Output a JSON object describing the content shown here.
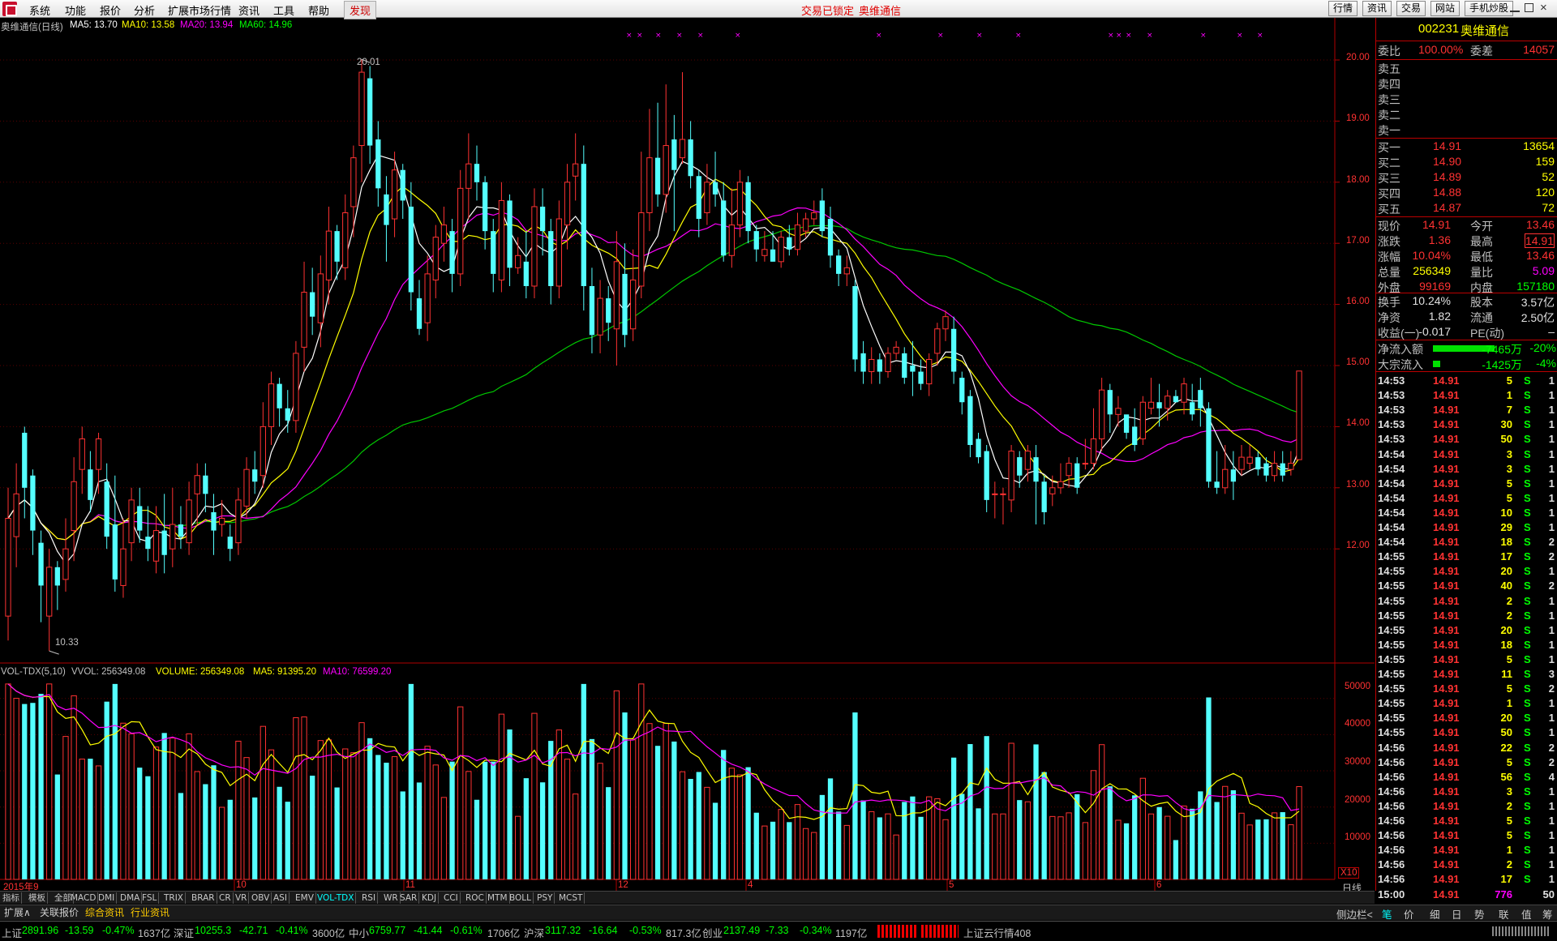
{
  "menu": {
    "items": [
      "系统",
      "功能",
      "报价",
      "分析",
      "扩展市场行情",
      "资讯",
      "工具",
      "帮助"
    ],
    "discover": "发现",
    "alert1": "交易已锁定",
    "alert2": "奥维通信",
    "right_buttons": [
      "行情",
      "资讯",
      "交易",
      "网站",
      "手机炒股"
    ]
  },
  "main_chart": {
    "header": {
      "name": "奥维通信(日线)",
      "ma5": "MA5: 13.70",
      "ma10": "MA10: 13.58",
      "ma20": "MA20: 13.94",
      "ma60": "MA60: 14.96"
    },
    "high_label": "20.01",
    "low_label": "10.33",
    "yaxis": [
      "20.00",
      "19.00",
      "18.00",
      "17.00",
      "16.00",
      "15.00",
      "14.00",
      "13.00",
      "12.00"
    ],
    "colors": {
      "up": "#ff3232",
      "down": "#54ffff",
      "ma5": "#ffffff",
      "ma10": "#ffff00",
      "ma20": "#ff00ff",
      "ma60": "#00c800"
    }
  },
  "volume_chart": {
    "header": {
      "name": "VOL-TDX(5,10)",
      "vvol": "VVOL: 256349.08",
      "volume": "VOLUME: 256349.08",
      "ma5": "MA5: 91395.20",
      "ma10": "MA10: 76599.20"
    },
    "yaxis": [
      "50000",
      "40000",
      "30000",
      "20000",
      "10000"
    ],
    "unit": "X10"
  },
  "xaxis": [
    "2015年9",
    "10",
    "11",
    "12",
    "4",
    "5",
    "6"
  ],
  "period_label": "日线",
  "quote": {
    "code": "002231",
    "name": "奥维通信",
    "weibi_label": "委比",
    "weibi_value": "100.00%",
    "weicha_label": "委差",
    "weicha_value": "14057",
    "sells": [
      "卖五",
      "卖四",
      "卖三",
      "卖二",
      "卖一"
    ],
    "buys": [
      {
        "label": "买一",
        "price": "14.91",
        "vol": "13654"
      },
      {
        "label": "买二",
        "price": "14.90",
        "vol": "159"
      },
      {
        "label": "买三",
        "price": "14.89",
        "vol": "52"
      },
      {
        "label": "买四",
        "price": "14.88",
        "vol": "120"
      },
      {
        "label": "买五",
        "price": "14.87",
        "vol": "72"
      }
    ],
    "stats": [
      {
        "l1": "现价",
        "v1": "14.91",
        "l2": "今开",
        "v2": "13.46"
      },
      {
        "l1": "涨跌",
        "v1": "1.36",
        "l2": "最高",
        "v2": "14.91"
      },
      {
        "l1": "涨幅",
        "v1": "10.04%",
        "l2": "最低",
        "v2": "13.46"
      },
      {
        "l1": "总量",
        "v1": "256349",
        "l2": "量比",
        "v2": "5.09"
      },
      {
        "l1": "外盘",
        "v1": "99169",
        "l2": "内盘",
        "v2": "157180"
      }
    ],
    "fin": [
      {
        "l1": "换手",
        "v1": "10.24%",
        "l2": "股本",
        "v2": "3.57亿"
      },
      {
        "l1": "净资",
        "v1": "1.82",
        "l2": "流通",
        "v2": "2.50亿"
      },
      {
        "l1": "收益(一)",
        "v1": "-0.017",
        "l2": "PE(动)",
        "v2": "–"
      }
    ],
    "flow": [
      {
        "label": "净流入额",
        "value": "-7465万",
        "pct": "-20%"
      },
      {
        "label": "大宗流入",
        "value": "-1425万",
        "pct": "-4%"
      }
    ]
  },
  "ticks": [
    {
      "t": "14:53",
      "p": "14.91",
      "v": "5",
      "s": "S",
      "n": "1"
    },
    {
      "t": "14:53",
      "p": "14.91",
      "v": "1",
      "s": "S",
      "n": "1"
    },
    {
      "t": "14:53",
      "p": "14.91",
      "v": "7",
      "s": "S",
      "n": "1"
    },
    {
      "t": "14:53",
      "p": "14.91",
      "v": "30",
      "s": "S",
      "n": "1"
    },
    {
      "t": "14:53",
      "p": "14.91",
      "v": "50",
      "s": "S",
      "n": "1"
    },
    {
      "t": "14:54",
      "p": "14.91",
      "v": "3",
      "s": "S",
      "n": "1"
    },
    {
      "t": "14:54",
      "p": "14.91",
      "v": "3",
      "s": "S",
      "n": "1"
    },
    {
      "t": "14:54",
      "p": "14.91",
      "v": "5",
      "s": "S",
      "n": "1"
    },
    {
      "t": "14:54",
      "p": "14.91",
      "v": "5",
      "s": "S",
      "n": "1"
    },
    {
      "t": "14:54",
      "p": "14.91",
      "v": "10",
      "s": "S",
      "n": "1"
    },
    {
      "t": "14:54",
      "p": "14.91",
      "v": "29",
      "s": "S",
      "n": "1"
    },
    {
      "t": "14:54",
      "p": "14.91",
      "v": "18",
      "s": "S",
      "n": "2"
    },
    {
      "t": "14:55",
      "p": "14.91",
      "v": "17",
      "s": "S",
      "n": "2"
    },
    {
      "t": "14:55",
      "p": "14.91",
      "v": "20",
      "s": "S",
      "n": "1"
    },
    {
      "t": "14:55",
      "p": "14.91",
      "v": "40",
      "s": "S",
      "n": "2"
    },
    {
      "t": "14:55",
      "p": "14.91",
      "v": "2",
      "s": "S",
      "n": "1"
    },
    {
      "t": "14:55",
      "p": "14.91",
      "v": "2",
      "s": "S",
      "n": "1"
    },
    {
      "t": "14:55",
      "p": "14.91",
      "v": "20",
      "s": "S",
      "n": "1"
    },
    {
      "t": "14:55",
      "p": "14.91",
      "v": "18",
      "s": "S",
      "n": "1"
    },
    {
      "t": "14:55",
      "p": "14.91",
      "v": "5",
      "s": "S",
      "n": "1"
    },
    {
      "t": "14:55",
      "p": "14.91",
      "v": "11",
      "s": "S",
      "n": "3"
    },
    {
      "t": "14:55",
      "p": "14.91",
      "v": "5",
      "s": "S",
      "n": "2"
    },
    {
      "t": "14:55",
      "p": "14.91",
      "v": "1",
      "s": "S",
      "n": "1"
    },
    {
      "t": "14:55",
      "p": "14.91",
      "v": "20",
      "s": "S",
      "n": "1"
    },
    {
      "t": "14:55",
      "p": "14.91",
      "v": "50",
      "s": "S",
      "n": "1"
    },
    {
      "t": "14:56",
      "p": "14.91",
      "v": "22",
      "s": "S",
      "n": "2"
    },
    {
      "t": "14:56",
      "p": "14.91",
      "v": "5",
      "s": "S",
      "n": "2"
    },
    {
      "t": "14:56",
      "p": "14.91",
      "v": "56",
      "s": "S",
      "n": "4"
    },
    {
      "t": "14:56",
      "p": "14.91",
      "v": "3",
      "s": "S",
      "n": "1"
    },
    {
      "t": "14:56",
      "p": "14.91",
      "v": "2",
      "s": "S",
      "n": "1"
    },
    {
      "t": "14:56",
      "p": "14.91",
      "v": "5",
      "s": "S",
      "n": "1"
    },
    {
      "t": "14:56",
      "p": "14.91",
      "v": "5",
      "s": "S",
      "n": "1"
    },
    {
      "t": "14:56",
      "p": "14.91",
      "v": "1",
      "s": "S",
      "n": "1"
    },
    {
      "t": "14:56",
      "p": "14.91",
      "v": "2",
      "s": "S",
      "n": "1"
    },
    {
      "t": "14:56",
      "p": "14.91",
      "v": "17",
      "s": "S",
      "n": "1"
    },
    {
      "t": "15:00",
      "p": "14.91",
      "v": "776",
      "s": "",
      "n": "50"
    }
  ],
  "indicators": [
    "指标",
    "模板",
    "全部",
    "MACD",
    "DMI",
    "DMA",
    "FSL",
    "TRIX",
    "BRAR",
    "CR",
    "VR",
    "OBV",
    "ASI",
    "EMV",
    "VOL-TDX",
    "RSI",
    "WR",
    "SAR",
    "KDJ",
    "CCI",
    "ROC",
    "MTM",
    "BOLL",
    "PSY",
    "MCST"
  ],
  "sub_tabs": [
    "扩展∧",
    "关联报价",
    "综合资讯",
    "行业资讯"
  ],
  "right_tabs": [
    "侧边栏<",
    "笔",
    "价",
    "细",
    "日",
    "势",
    "联",
    "值",
    "筹"
  ],
  "nav": [
    "+",
    "-",
    "0"
  ],
  "status": {
    "sh": {
      "label": "上证",
      "v": "2891.96",
      "c": "-13.59",
      "p": "-0.47%",
      "a": "1637亿"
    },
    "sz": {
      "label": "深证",
      "v": "10255.3",
      "c": "-42.71",
      "p": "-0.41%",
      "a": "3600亿"
    },
    "zx": {
      "label": "中小",
      "v": "6759.77",
      "c": "-41.44",
      "p": "-0.61%",
      "a": "1706亿"
    },
    "hs": {
      "label": "沪深",
      "v": "3117.32",
      "c": "-16.64",
      "p": "-0.53%",
      "a": "817.3亿"
    },
    "cy": {
      "label": "创业",
      "v": "2137.49",
      "c": "-7.33",
      "p": "-0.34%",
      "a": "1197亿"
    },
    "server": "上证云行情408"
  },
  "chart_data": {
    "type": "candlestick",
    "title": "奥维通信(日线)",
    "ylim": [
      10.0,
      20.3
    ],
    "candles": [
      [
        10.9,
        12.5,
        10.5,
        13.0
      ],
      [
        12.2,
        12.9,
        11.7,
        13.4
      ],
      [
        13.9,
        13.0,
        12.5,
        14.0
      ],
      [
        13.2,
        12.3,
        11.9,
        13.3
      ],
      [
        12.1,
        11.4,
        10.8,
        12.3
      ],
      [
        10.9,
        11.7,
        10.33,
        12.0
      ],
      [
        11.7,
        11.4,
        11.0,
        11.8
      ],
      [
        11.5,
        12.0,
        11.3,
        12.5
      ],
      [
        12.3,
        13.1,
        11.8,
        13.5
      ],
      [
        13.3,
        13.8,
        12.9,
        14.0
      ],
      [
        13.3,
        12.8,
        12.6,
        13.6
      ],
      [
        13.3,
        13.8,
        12.9,
        13.9
      ],
      [
        13.1,
        12.2,
        12.0,
        13.4
      ],
      [
        12.4,
        11.5,
        11.3,
        13.2
      ],
      [
        11.4,
        12.0,
        11.2,
        12.5
      ],
      [
        12.1,
        12.8,
        11.8,
        13.0
      ],
      [
        12.7,
        12.3,
        12.1,
        13.0
      ],
      [
        12.2,
        12.0,
        11.8,
        12.7
      ],
      [
        11.8,
        12.3,
        11.6,
        12.7
      ],
      [
        12.3,
        11.9,
        11.6,
        12.9
      ],
      [
        12.0,
        12.4,
        11.7,
        13.0
      ],
      [
        12.4,
        12.2,
        12.0,
        12.7
      ],
      [
        12.1,
        12.8,
        11.9,
        13.1
      ],
      [
        12.9,
        13.2,
        12.4,
        13.4
      ],
      [
        13.2,
        12.9,
        12.6,
        13.4
      ],
      [
        12.6,
        12.3,
        11.9,
        12.9
      ],
      [
        12.4,
        12.5,
        12.2,
        12.8
      ],
      [
        12.2,
        12.0,
        11.8,
        12.4
      ],
      [
        12.1,
        12.8,
        11.9,
        13.0
      ],
      [
        12.7,
        13.3,
        12.5,
        13.5
      ],
      [
        13.3,
        13.1,
        12.9,
        13.6
      ],
      [
        13.2,
        14.0,
        13.0,
        14.4
      ],
      [
        14.0,
        14.7,
        13.7,
        14.9
      ],
      [
        14.7,
        14.3,
        14.0,
        14.8
      ],
      [
        14.3,
        14.1,
        13.9,
        14.6
      ],
      [
        14.1,
        15.2,
        13.9,
        15.4
      ],
      [
        15.3,
        16.2,
        14.9,
        16.7
      ],
      [
        16.2,
        15.8,
        15.5,
        16.6
      ],
      [
        15.7,
        16.5,
        15.3,
        16.8
      ],
      [
        16.4,
        17.2,
        16.0,
        17.6
      ],
      [
        17.2,
        16.7,
        16.4,
        17.3
      ],
      [
        16.6,
        17.5,
        16.4,
        17.8
      ],
      [
        17.6,
        18.4,
        17.1,
        18.6
      ],
      [
        18.6,
        19.8,
        18.0,
        20.01
      ],
      [
        19.7,
        18.6,
        18.3,
        19.9
      ],
      [
        18.7,
        17.9,
        17.6,
        19.0
      ],
      [
        17.8,
        17.3,
        16.7,
        18.1
      ],
      [
        17.4,
        18.2,
        17.1,
        18.5
      ],
      [
        18.2,
        17.7,
        17.4,
        18.3
      ],
      [
        17.6,
        16.2,
        15.9,
        18.0
      ],
      [
        16.1,
        15.6,
        15.5,
        16.4
      ],
      [
        15.7,
        16.5,
        15.4,
        16.8
      ],
      [
        16.4,
        17.1,
        16.1,
        17.3
      ],
      [
        17.0,
        17.3,
        16.7,
        17.6
      ],
      [
        17.2,
        16.5,
        16.2,
        17.4
      ],
      [
        16.5,
        17.9,
        16.3,
        18.2
      ],
      [
        17.9,
        18.3,
        17.4,
        18.8
      ],
      [
        18.3,
        18.0,
        17.7,
        18.6
      ],
      [
        18.0,
        17.2,
        16.9,
        18.1
      ],
      [
        17.2,
        16.5,
        16.2,
        17.4
      ],
      [
        16.4,
        17.7,
        16.2,
        18.0
      ],
      [
        17.7,
        16.6,
        16.3,
        17.8
      ],
      [
        16.6,
        16.8,
        16.5,
        17.1
      ],
      [
        16.7,
        16.3,
        16.1,
        17.2
      ],
      [
        16.3,
        17.6,
        16.1,
        17.9
      ],
      [
        17.6,
        17.2,
        16.8,
        17.9
      ],
      [
        17.2,
        16.3,
        16.0,
        17.4
      ],
      [
        16.3,
        17.4,
        16.1,
        17.7
      ],
      [
        17.3,
        18.0,
        16.9,
        18.3
      ],
      [
        18.1,
        18.3,
        17.7,
        18.8
      ],
      [
        18.3,
        16.3,
        15.9,
        18.6
      ],
      [
        16.3,
        15.5,
        15.2,
        16.6
      ],
      [
        15.5,
        16.1,
        15.2,
        16.4
      ],
      [
        16.1,
        15.7,
        15.4,
        16.3
      ],
      [
        15.6,
        16.7,
        15.0,
        17.2
      ],
      [
        16.5,
        15.5,
        15.3,
        17.0
      ],
      [
        15.6,
        16.4,
        15.4,
        16.9
      ],
      [
        16.3,
        17.5,
        16.1,
        18.5
      ],
      [
        17.5,
        18.4,
        17.2,
        19.2
      ],
      [
        18.4,
        17.8,
        17.6,
        19.3
      ],
      [
        17.8,
        18.6,
        17.5,
        19.6
      ],
      [
        18.7,
        18.2,
        17.2,
        19.1
      ],
      [
        18.4,
        18.7,
        18.3,
        19.8
      ],
      [
        18.7,
        18.1,
        17.9,
        19.0
      ],
      [
        18.1,
        17.4,
        17.1,
        18.2
      ],
      [
        17.5,
        18.0,
        17.3,
        18.3
      ],
      [
        18.0,
        17.8,
        17.6,
        18.5
      ],
      [
        17.7,
        16.8,
        16.7,
        18.0
      ],
      [
        16.8,
        17.3,
        16.6,
        17.9
      ],
      [
        17.3,
        18.0,
        17.1,
        18.2
      ],
      [
        18.0,
        17.2,
        17.0,
        18.1
      ],
      [
        17.2,
        16.9,
        16.7,
        17.3
      ],
      [
        16.8,
        16.9,
        16.7,
        17.2
      ],
      [
        16.9,
        16.7,
        16.7,
        17.2
      ],
      [
        16.7,
        17.1,
        16.6,
        17.2
      ],
      [
        17.1,
        16.9,
        16.8,
        17.3
      ],
      [
        16.9,
        17.3,
        16.8,
        17.5
      ],
      [
        17.2,
        17.4,
        17.1,
        17.5
      ],
      [
        17.4,
        17.5,
        17.3,
        17.7
      ],
      [
        17.7,
        17.2,
        17.1,
        17.9
      ],
      [
        17.4,
        16.8,
        16.6,
        17.6
      ],
      [
        16.8,
        16.5,
        16.3,
        16.9
      ],
      [
        16.5,
        16.6,
        16.3,
        16.8
      ],
      [
        16.3,
        15.1,
        14.9,
        16.4
      ],
      [
        15.2,
        14.9,
        14.7,
        15.4
      ],
      [
        14.9,
        15.1,
        14.7,
        15.3
      ],
      [
        15.1,
        14.9,
        14.7,
        15.2
      ],
      [
        14.9,
        15.2,
        14.8,
        15.3
      ],
      [
        15.2,
        15.3,
        15.1,
        15.4
      ],
      [
        15.2,
        14.8,
        14.7,
        15.3
      ],
      [
        15.0,
        14.9,
        14.5,
        15.4
      ],
      [
        14.9,
        14.7,
        14.6,
        15.1
      ],
      [
        14.7,
        15.1,
        14.5,
        15.2
      ],
      [
        15.2,
        15.6,
        15.0,
        15.7
      ],
      [
        15.6,
        15.8,
        15.4,
        15.9
      ],
      [
        15.6,
        14.9,
        14.7,
        15.8
      ],
      [
        14.8,
        14.4,
        14.2,
        14.9
      ],
      [
        14.5,
        13.7,
        13.5,
        14.6
      ],
      [
        13.8,
        13.5,
        13.4,
        13.9
      ],
      [
        13.6,
        12.8,
        12.6,
        13.7
      ],
      [
        12.9,
        12.9,
        12.5,
        13.1
      ],
      [
        12.9,
        12.9,
        12.4,
        13.0
      ],
      [
        12.8,
        13.6,
        12.6,
        13.7
      ],
      [
        13.5,
        13.2,
        13.0,
        13.6
      ],
      [
        13.3,
        13.6,
        13.1,
        13.7
      ],
      [
        13.5,
        13.1,
        12.4,
        13.7
      ],
      [
        13.1,
        12.6,
        12.4,
        13.2
      ],
      [
        12.9,
        13.0,
        12.7,
        13.2
      ],
      [
        13.0,
        13.1,
        12.9,
        13.4
      ],
      [
        13.2,
        13.4,
        13.0,
        13.5
      ],
      [
        13.4,
        13.0,
        12.9,
        13.5
      ],
      [
        13.4,
        13.4,
        13.3,
        13.8
      ],
      [
        13.4,
        13.8,
        13.3,
        14.3
      ],
      [
        13.8,
        14.6,
        13.6,
        14.8
      ],
      [
        14.6,
        14.2,
        13.9,
        14.7
      ],
      [
        14.2,
        14.3,
        14.0,
        14.5
      ],
      [
        14.2,
        13.9,
        13.8,
        14.1
      ],
      [
        14.0,
        13.7,
        13.6,
        14.3
      ],
      [
        13.8,
        14.4,
        13.7,
        14.5
      ],
      [
        14.3,
        14.4,
        14.2,
        14.8
      ],
      [
        14.4,
        14.3,
        14.0,
        14.7
      ],
      [
        14.3,
        14.5,
        14.1,
        14.6
      ],
      [
        14.5,
        14.4,
        14.4,
        14.6
      ],
      [
        14.4,
        14.7,
        14.2,
        14.8
      ],
      [
        14.4,
        14.2,
        14.1,
        14.7
      ],
      [
        14.6,
        14.3,
        14.0,
        14.8
      ],
      [
        14.3,
        13.1,
        13.0,
        14.4
      ],
      [
        13.1,
        13.0,
        12.9,
        13.6
      ],
      [
        13.0,
        13.3,
        12.9,
        13.7
      ],
      [
        13.3,
        13.1,
        12.8,
        13.6
      ],
      [
        13.3,
        13.5,
        13.2,
        13.7
      ],
      [
        13.4,
        13.5,
        13.3,
        13.7
      ],
      [
        13.5,
        13.3,
        13.2,
        13.6
      ],
      [
        13.4,
        13.2,
        13.1,
        13.5
      ],
      [
        13.2,
        13.4,
        13.1,
        13.6
      ],
      [
        13.4,
        13.2,
        13.1,
        13.6
      ],
      [
        13.3,
        13.4,
        13.2,
        13.6
      ],
      [
        13.46,
        14.91,
        13.46,
        14.91
      ]
    ],
    "ma5_end": 13.7,
    "ma10_end": 13.58,
    "ma20_end": 13.94,
    "ma60_end": 14.96
  }
}
